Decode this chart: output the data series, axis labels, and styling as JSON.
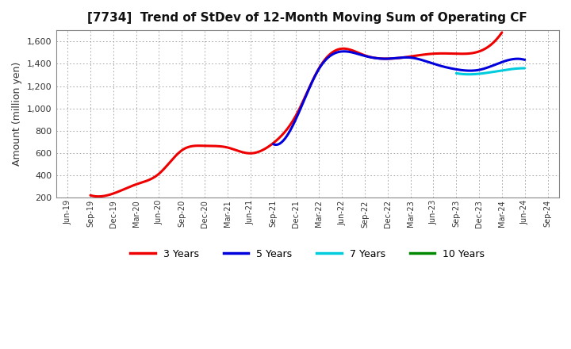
{
  "title": "[7734]  Trend of StDev of 12-Month Moving Sum of Operating CF",
  "ylabel": "Amount (million yen)",
  "ylim": [
    200,
    1700
  ],
  "yticks": [
    200,
    400,
    600,
    800,
    1000,
    1200,
    1400,
    1600
  ],
  "background_color": "#ffffff",
  "plot_bg_color": "#ffffff",
  "grid_color": "#999999",
  "x_labels": [
    "Jun-19",
    "Sep-19",
    "Dec-19",
    "Mar-20",
    "Jun-20",
    "Sep-20",
    "Dec-20",
    "Mar-21",
    "Jun-21",
    "Sep-21",
    "Dec-21",
    "Mar-22",
    "Jun-22",
    "Sep-22",
    "Dec-22",
    "Mar-23",
    "Jun-23",
    "Sep-23",
    "Dec-23",
    "Mar-24",
    "Jun-24",
    "Sep-24"
  ],
  "series": {
    "3 Years": {
      "color": "#ee0000",
      "lw": 2.2,
      "values": [
        null,
        222,
        238,
        320,
        415,
        625,
        665,
        650,
        598,
        690,
        940,
        1360,
        1535,
        1475,
        1445,
        1465,
        1490,
        1490,
        1510,
        1680,
        null,
        null
      ]
    },
    "5 Years": {
      "color": "#0000dd",
      "lw": 2.2,
      "values": [
        null,
        null,
        null,
        null,
        null,
        null,
        null,
        null,
        null,
        680,
        910,
        1355,
        1510,
        1470,
        1445,
        1455,
        1400,
        1350,
        1345,
        1415,
        1435,
        null
      ]
    },
    "7 Years": {
      "color": "#00ccdd",
      "lw": 2.2,
      "values": [
        null,
        null,
        null,
        null,
        null,
        null,
        null,
        null,
        null,
        null,
        null,
        null,
        null,
        null,
        null,
        null,
        null,
        1315,
        1310,
        1340,
        1360,
        null
      ]
    },
    "10 Years": {
      "color": "#008800",
      "lw": 2.2,
      "values": [
        null,
        null,
        null,
        null,
        null,
        null,
        null,
        null,
        null,
        null,
        null,
        null,
        null,
        null,
        null,
        null,
        null,
        null,
        null,
        null,
        null,
        null
      ]
    }
  },
  "legend_order": [
    "3 Years",
    "5 Years",
    "7 Years",
    "10 Years"
  ]
}
